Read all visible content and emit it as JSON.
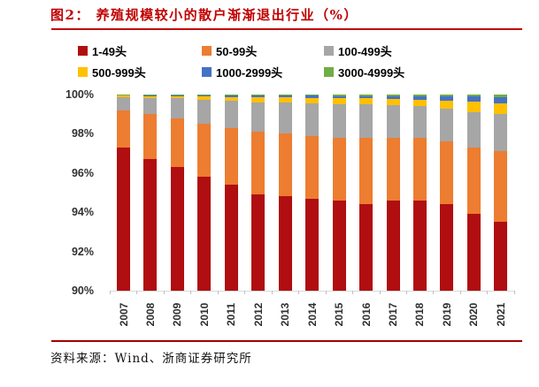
{
  "title": "图2： 养殖规模较小的散户渐渐退出行业（%）",
  "source": "资料来源：Wind、浙商证券研究所",
  "colors": {
    "title_text": "#C00000",
    "title_rule": "#C00000",
    "bottom_rule": "#A00000",
    "axis_text": "#303030",
    "axis_line": "#D9D9D9",
    "tick_mark": "#BFBFBF"
  },
  "chart_data": {
    "type": "bar",
    "stacked": true,
    "title": "养殖规模较小的散户渐渐退出行业（%）",
    "categories": [
      "2007",
      "2008",
      "2009",
      "2010",
      "2011",
      "2012",
      "2013",
      "2014",
      "2015",
      "2016",
      "2017",
      "2018",
      "2019",
      "2020",
      "2021"
    ],
    "series": [
      {
        "name": "1-49头",
        "color": "#B00E10",
        "values": [
          97.3,
          96.7,
          96.3,
          95.8,
          95.4,
          94.9,
          94.8,
          94.7,
          94.6,
          94.4,
          94.6,
          94.6,
          94.4,
          93.9,
          93.5
        ]
      },
      {
        "name": "50-99头",
        "color": "#ED7D31",
        "values": [
          1.9,
          2.3,
          2.5,
          2.7,
          2.9,
          3.2,
          3.2,
          3.2,
          3.2,
          3.4,
          3.2,
          3.2,
          3.2,
          3.4,
          3.6
        ]
      },
      {
        "name": "100-499头",
        "color": "#A6A6A6",
        "values": [
          0.68,
          0.8,
          1.0,
          1.25,
          1.4,
          1.5,
          1.6,
          1.65,
          1.7,
          1.7,
          1.65,
          1.6,
          1.7,
          1.8,
          1.9
        ]
      },
      {
        "name": "500-999头",
        "color": "#FFC000",
        "values": [
          0.09,
          0.12,
          0.12,
          0.15,
          0.18,
          0.25,
          0.25,
          0.28,
          0.3,
          0.3,
          0.33,
          0.35,
          0.4,
          0.55,
          0.55
        ]
      },
      {
        "name": "1000-2999头",
        "color": "#4472C4",
        "values": [
          0.02,
          0.05,
          0.06,
          0.07,
          0.08,
          0.1,
          0.1,
          0.11,
          0.13,
          0.13,
          0.15,
          0.17,
          0.2,
          0.25,
          0.3
        ]
      },
      {
        "name": "3000-4999头",
        "color": "#70AD47",
        "values": [
          0.01,
          0.03,
          0.02,
          0.03,
          0.04,
          0.05,
          0.05,
          0.06,
          0.07,
          0.07,
          0.07,
          0.08,
          0.1,
          0.1,
          0.15
        ]
      }
    ],
    "ylim": [
      90,
      100
    ],
    "y_ticks": [
      {
        "value": 100,
        "label": "100%"
      },
      {
        "value": 98,
        "label": "98%"
      },
      {
        "value": 96,
        "label": "96%"
      },
      {
        "value": 94,
        "label": "94%"
      },
      {
        "value": 92,
        "label": "92%"
      },
      {
        "value": 90,
        "label": "90%"
      }
    ],
    "xlabel": "",
    "ylabel": "",
    "grid": false,
    "legend_position": "top"
  }
}
